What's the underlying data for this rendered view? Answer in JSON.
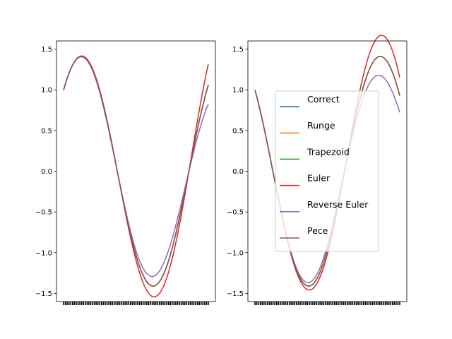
{
  "chart_data": [
    {
      "type": "line",
      "x_range": [
        0,
        6.35
      ],
      "ylim": [
        -1.6,
        1.6
      ],
      "yticks": [
        -1.5,
        -1.0,
        -0.5,
        0.0,
        0.5,
        1.0,
        1.5
      ],
      "ytick_labels": [
        "−1.5",
        "−1.0",
        "−0.5",
        "0.0",
        "0.5",
        "1.0",
        "1.5"
      ],
      "grid": false,
      "series": [
        {
          "name": "Correct",
          "color": "#1f77b4",
          "amplitude": 1.41,
          "phase": 0.785,
          "growth": 0.0
        },
        {
          "name": "Runge",
          "color": "#ff7f0e",
          "amplitude": 1.41,
          "phase": 0.785,
          "growth": 0.0
        },
        {
          "name": "Trapezoid",
          "color": "#2ca02c",
          "amplitude": 1.41,
          "phase": 0.785,
          "growth": 0.0
        },
        {
          "name": "Euler",
          "color": "#d62728",
          "amplitude": 1.41,
          "phase": 0.785,
          "growth": 0.006
        },
        {
          "name": "Reverse Euler",
          "color": "#9467bd",
          "amplitude": 1.41,
          "phase": 0.785,
          "growth": -0.0055
        },
        {
          "name": "Pece",
          "color": "#8c564b",
          "amplitude": 1.41,
          "phase": 0.785,
          "growth": 0.0
        }
      ]
    },
    {
      "type": "line",
      "x_range": [
        0,
        6.35
      ],
      "ylim": [
        -1.6,
        1.6
      ],
      "yticks": [
        -1.5,
        -1.0,
        -0.5,
        0.0,
        0.5,
        1.0,
        1.5
      ],
      "ytick_labels": [
        "−1.5",
        "−1.0",
        "−0.5",
        "0.0",
        "0.5",
        "1.0",
        "1.5"
      ],
      "grid": false,
      "legend": "center",
      "series": [
        {
          "name": "Correct",
          "color": "#1f77b4",
          "amplitude": 1.41,
          "phase": 2.356,
          "growth": 0.0
        },
        {
          "name": "Runge",
          "color": "#ff7f0e",
          "amplitude": 1.41,
          "phase": 2.356,
          "growth": 0.0
        },
        {
          "name": "Trapezoid",
          "color": "#2ca02c",
          "amplitude": 1.41,
          "phase": 2.356,
          "growth": 0.0
        },
        {
          "name": "Euler",
          "color": "#d62728",
          "amplitude": 1.41,
          "phase": 2.356,
          "growth": 0.006
        },
        {
          "name": "Reverse Euler",
          "color": "#9467bd",
          "amplitude": 1.41,
          "phase": 2.356,
          "growth": -0.0055
        },
        {
          "name": "Pece",
          "color": "#8c564b",
          "amplitude": 1.41,
          "phase": 2.356,
          "growth": 0.0
        }
      ]
    }
  ]
}
